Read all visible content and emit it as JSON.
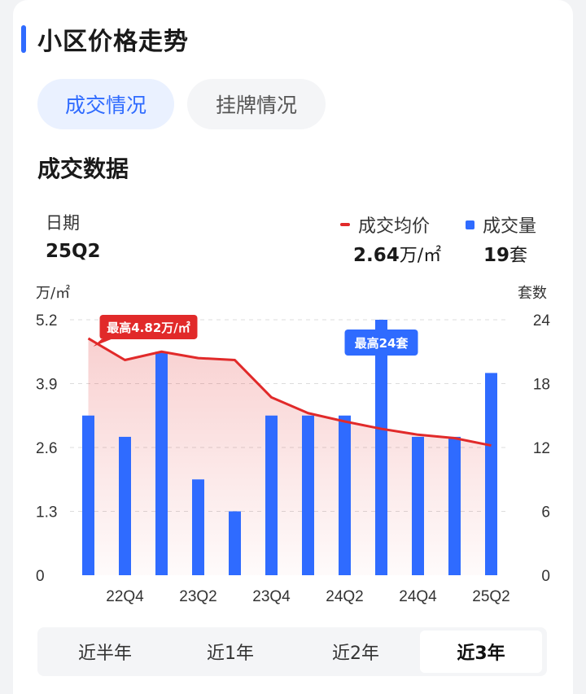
{
  "section_title": "小区价格走势",
  "tabs": [
    {
      "label": "成交情况",
      "active": true
    },
    {
      "label": "挂牌情况",
      "active": false
    }
  ],
  "sub_title": "成交数据",
  "summary": {
    "date_label": "日期",
    "date_value": "25Q2",
    "price_legend": "成交均价",
    "price_value": "2.64",
    "price_unit": "万/㎡",
    "volume_legend": "成交量",
    "volume_value": "19",
    "volume_unit": "套"
  },
  "chart_data": {
    "type": "bar+line",
    "left_axis_unit": "万/㎡",
    "right_axis_unit": "套数",
    "left_ticks": [
      "0",
      "1.3",
      "2.6",
      "3.9",
      "5.2"
    ],
    "right_ticks": [
      "0",
      "6",
      "12",
      "18",
      "24"
    ],
    "ylim_left": [
      0,
      5.2
    ],
    "ylim_right": [
      0,
      24
    ],
    "x_tick_labels": [
      "22Q4",
      "23Q2",
      "23Q4",
      "24Q2",
      "24Q4",
      "25Q2"
    ],
    "series": [
      {
        "name": "成交量",
        "kind": "bar",
        "axis": "right",
        "color": "#2f6bff",
        "values": [
          15,
          13,
          21,
          9,
          6,
          15,
          15,
          15,
          24,
          13,
          13,
          19
        ]
      },
      {
        "name": "成交均价",
        "kind": "line",
        "axis": "left",
        "color": "#e12a2a",
        "values": [
          4.82,
          4.38,
          4.55,
          4.42,
          4.38,
          3.62,
          3.3,
          3.13,
          2.98,
          2.86,
          2.79,
          2.64
        ]
      }
    ],
    "annotations": {
      "price_max": "最高4.82万/㎡",
      "volume_max": "最高24套"
    },
    "grid": true
  },
  "range_selector": [
    {
      "label": "近半年",
      "active": false
    },
    {
      "label": "近1年",
      "active": false
    },
    {
      "label": "近2年",
      "active": false
    },
    {
      "label": "近3年",
      "active": true
    }
  ]
}
